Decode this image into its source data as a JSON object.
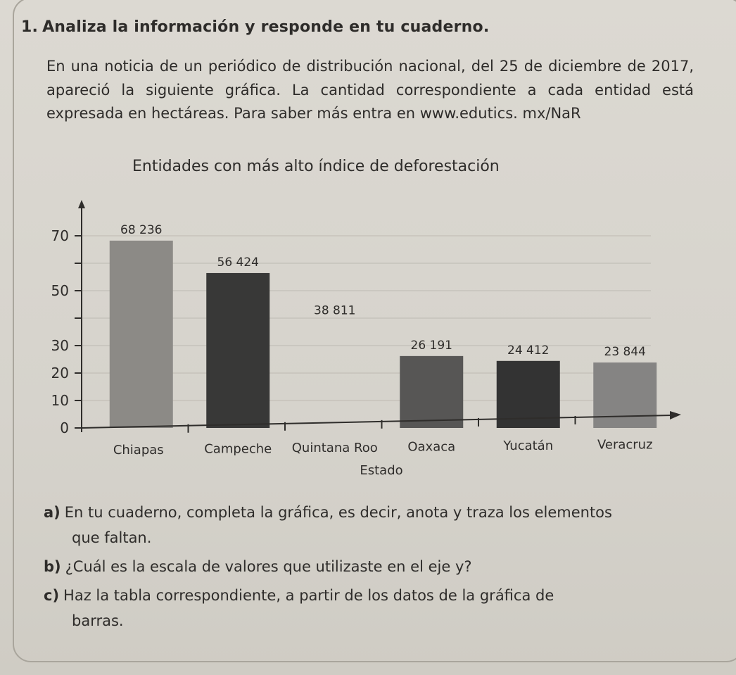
{
  "exercise": {
    "number": "1.",
    "instruction": "Analiza la información y responde en tu cuaderno.",
    "intro": "En una noticia de un periódico de distribución nacional, del 25 de diciembre de 2017, apareció la siguiente gráfica. La cantidad correspondiente a cada entidad está expresada en hectáreas. Para saber más entra en www.edutics. mx/NaR"
  },
  "chart_data": {
    "type": "bar",
    "title": "Entidades con más alto índice de deforestación",
    "xlabel": "Estado",
    "ylabel": "",
    "categories": [
      "Chiapas",
      "Campeche",
      "Quintana Roo",
      "Oaxaca",
      "Yucatán",
      "Veracruz"
    ],
    "values": [
      68236,
      56424,
      38811,
      26191,
      24412,
      23844
    ],
    "value_labels": [
      "68 236",
      "56 424",
      "38 811",
      "26 191",
      "24 412",
      "23 844"
    ],
    "y_tick_labels": [
      "0",
      "10",
      "20",
      "30",
      "",
      "50",
      "",
      "70"
    ],
    "y_tick_values": [
      0,
      10,
      20,
      30,
      40,
      50,
      60,
      70
    ],
    "ylim": [
      0,
      75
    ],
    "bar_visible": [
      true,
      true,
      false,
      true,
      true,
      true
    ],
    "bar_colors": [
      "#8c8a86",
      "#383837",
      "#383837",
      "#575655",
      "#333333",
      "#858483"
    ],
    "grid": true,
    "legend": "none"
  },
  "questions": [
    {
      "letter": "a)",
      "text": "En tu cuaderno, completa la gráfica, es decir, anota y traza los elementos",
      "cont": "que faltan."
    },
    {
      "letter": "b)",
      "text": "¿Cuál es la escala de valores que utilizaste en el eje y?",
      "cont": ""
    },
    {
      "letter": "c)",
      "text": "Haz la tabla correspondiente, a partir de los datos de la gráfica de",
      "cont": "barras."
    }
  ]
}
